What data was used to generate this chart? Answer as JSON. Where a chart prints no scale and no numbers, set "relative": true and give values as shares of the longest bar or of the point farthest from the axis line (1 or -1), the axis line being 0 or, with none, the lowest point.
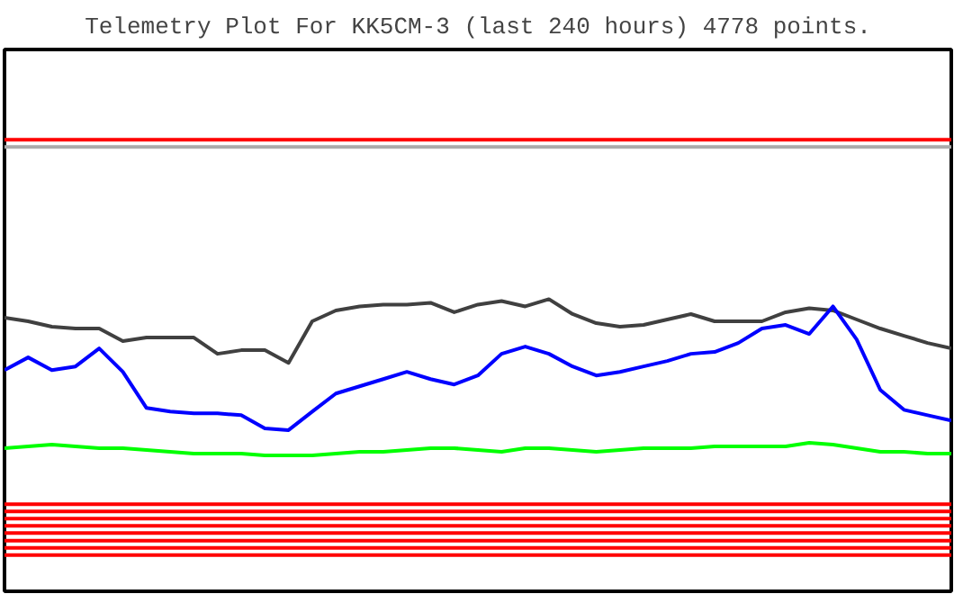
{
  "chart_data": {
    "type": "line",
    "relative": true,
    "title": "Telemetry Plot For KK5CM-3 (last 240 hours) 4778 points.",
    "marker": "none",
    "line_style": "solid",
    "grid": false,
    "tick_labels": false,
    "categories": [
      null,
      null,
      null,
      null,
      null,
      null,
      null,
      null,
      null,
      null,
      null,
      null,
      null,
      null,
      null,
      null,
      null,
      null,
      null,
      null,
      null,
      null,
      null,
      null,
      null,
      null,
      null,
      null,
      null,
      null,
      null,
      null,
      null,
      null,
      null,
      null,
      null,
      null,
      null,
      null,
      null
    ],
    "series": [
      {
        "color": "#ff0000",
        "values": [
          1,
          1,
          1,
          1,
          1,
          1,
          1,
          1,
          1,
          1,
          1,
          1,
          1,
          1,
          1,
          1,
          1,
          1,
          1,
          1,
          1,
          1,
          1,
          1,
          1,
          1,
          1,
          1,
          1,
          1,
          1,
          1,
          1,
          1,
          1,
          1,
          1,
          1,
          1,
          1,
          1
        ]
      },
      {
        "color": "#aaaaaa",
        "values": [
          0.984,
          0.984,
          0.984,
          0.984,
          0.984,
          0.984,
          0.984,
          0.984,
          0.984,
          0.984,
          0.984,
          0.984,
          0.984,
          0.984,
          0.984,
          0.984,
          0.984,
          0.984,
          0.984,
          0.984,
          0.984,
          0.984,
          0.984,
          0.984,
          0.984,
          0.984,
          0.984,
          0.984,
          0.984,
          0.984,
          0.984,
          0.984,
          0.984,
          0.984,
          0.984,
          0.984,
          0.984,
          0.984,
          0.984,
          0.984,
          0.984
        ]
      },
      {
        "color": "#404040",
        "values": [
          0.606,
          0.598,
          0.586,
          0.582,
          0.582,
          0.554,
          0.562,
          0.562,
          0.562,
          0.526,
          0.534,
          0.534,
          0.506,
          0.598,
          0.622,
          0.631,
          0.635,
          0.635,
          0.639,
          0.618,
          0.635,
          0.643,
          0.631,
          0.647,
          0.614,
          0.594,
          0.586,
          0.59,
          0.602,
          0.614,
          0.598,
          0.598,
          0.598,
          0.618,
          0.627,
          0.622,
          0.602,
          0.582,
          0.566,
          0.55,
          0.538
        ]
      },
      {
        "color": "#0000ff",
        "values": [
          0.49,
          0.518,
          0.49,
          0.498,
          0.538,
          0.486,
          0.406,
          0.398,
          0.394,
          0.394,
          0.39,
          0.361,
          0.357,
          0.398,
          0.438,
          0.454,
          0.47,
          0.486,
          0.47,
          0.458,
          0.478,
          0.526,
          0.542,
          0.526,
          0.498,
          0.478,
          0.486,
          0.498,
          0.51,
          0.526,
          0.53,
          0.55,
          0.582,
          0.59,
          0.57,
          0.631,
          0.558,
          0.446,
          0.402,
          0.39,
          0.378
        ]
      },
      {
        "color": "#00ff00",
        "values": [
          0.317,
          0.321,
          0.325,
          0.321,
          0.317,
          0.317,
          0.313,
          0.309,
          0.305,
          0.305,
          0.305,
          0.301,
          0.301,
          0.301,
          0.305,
          0.309,
          0.309,
          0.313,
          0.317,
          0.317,
          0.313,
          0.309,
          0.317,
          0.317,
          0.313,
          0.309,
          0.313,
          0.317,
          0.317,
          0.317,
          0.321,
          0.321,
          0.321,
          0.321,
          0.329,
          0.325,
          0.317,
          0.309,
          0.309,
          0.305,
          0.305
        ]
      },
      {
        "color": "#ff0000",
        "values": [
          0.193,
          0.193,
          0.193,
          0.193,
          0.193,
          0.193,
          0.193,
          0.193,
          0.193,
          0.193,
          0.193,
          0.193,
          0.193,
          0.193,
          0.193,
          0.193,
          0.193,
          0.193,
          0.193,
          0.193,
          0.193,
          0.193,
          0.193,
          0.193,
          0.193,
          0.193,
          0.193,
          0.193,
          0.193,
          0.193,
          0.193,
          0.193,
          0.193,
          0.193,
          0.193,
          0.193,
          0.193,
          0.193,
          0.193,
          0.193,
          0.193
        ]
      },
      {
        "color": "#ff0000",
        "values": [
          0.177,
          0.177,
          0.177,
          0.177,
          0.177,
          0.177,
          0.177,
          0.177,
          0.177,
          0.177,
          0.177,
          0.177,
          0.177,
          0.177,
          0.177,
          0.177,
          0.177,
          0.177,
          0.177,
          0.177,
          0.177,
          0.177,
          0.177,
          0.177,
          0.177,
          0.177,
          0.177,
          0.177,
          0.177,
          0.177,
          0.177,
          0.177,
          0.177,
          0.177,
          0.177,
          0.177,
          0.177,
          0.177,
          0.177,
          0.177,
          0.177
        ]
      },
      {
        "color": "#ff0000",
        "values": [
          0.161,
          0.161,
          0.161,
          0.161,
          0.161,
          0.161,
          0.161,
          0.161,
          0.161,
          0.161,
          0.161,
          0.161,
          0.161,
          0.161,
          0.161,
          0.161,
          0.161,
          0.161,
          0.161,
          0.161,
          0.161,
          0.161,
          0.161,
          0.161,
          0.161,
          0.161,
          0.161,
          0.161,
          0.161,
          0.161,
          0.161,
          0.161,
          0.161,
          0.161,
          0.161,
          0.161,
          0.161,
          0.161,
          0.161,
          0.161,
          0.161
        ]
      },
      {
        "color": "#ff0000",
        "values": [
          0.145,
          0.145,
          0.145,
          0.145,
          0.145,
          0.145,
          0.145,
          0.145,
          0.145,
          0.145,
          0.145,
          0.145,
          0.145,
          0.145,
          0.145,
          0.145,
          0.145,
          0.145,
          0.145,
          0.145,
          0.145,
          0.145,
          0.145,
          0.145,
          0.145,
          0.145,
          0.145,
          0.145,
          0.145,
          0.145,
          0.145,
          0.145,
          0.145,
          0.145,
          0.145,
          0.145,
          0.145,
          0.145,
          0.145,
          0.145,
          0.145
        ]
      },
      {
        "color": "#ff0000",
        "values": [
          0.129,
          0.129,
          0.129,
          0.129,
          0.129,
          0.129,
          0.129,
          0.129,
          0.129,
          0.129,
          0.129,
          0.129,
          0.129,
          0.129,
          0.129,
          0.129,
          0.129,
          0.129,
          0.129,
          0.129,
          0.129,
          0.129,
          0.129,
          0.129,
          0.129,
          0.129,
          0.129,
          0.129,
          0.129,
          0.129,
          0.129,
          0.129,
          0.129,
          0.129,
          0.129,
          0.129,
          0.129,
          0.129,
          0.129,
          0.129,
          0.129
        ]
      },
      {
        "color": "#ff0000",
        "values": [
          0.112,
          0.112,
          0.112,
          0.112,
          0.112,
          0.112,
          0.112,
          0.112,
          0.112,
          0.112,
          0.112,
          0.112,
          0.112,
          0.112,
          0.112,
          0.112,
          0.112,
          0.112,
          0.112,
          0.112,
          0.112,
          0.112,
          0.112,
          0.112,
          0.112,
          0.112,
          0.112,
          0.112,
          0.112,
          0.112,
          0.112,
          0.112,
          0.112,
          0.112,
          0.112,
          0.112,
          0.112,
          0.112,
          0.112,
          0.112,
          0.112
        ]
      },
      {
        "color": "#ff0000",
        "values": [
          0.096,
          0.096,
          0.096,
          0.096,
          0.096,
          0.096,
          0.096,
          0.096,
          0.096,
          0.096,
          0.096,
          0.096,
          0.096,
          0.096,
          0.096,
          0.096,
          0.096,
          0.096,
          0.096,
          0.096,
          0.096,
          0.096,
          0.096,
          0.096,
          0.096,
          0.096,
          0.096,
          0.096,
          0.096,
          0.096,
          0.096,
          0.096,
          0.096,
          0.096,
          0.096,
          0.096,
          0.096,
          0.096,
          0.096,
          0.096,
          0.096
        ]
      },
      {
        "color": "#ff0000",
        "values": [
          0.08,
          0.08,
          0.08,
          0.08,
          0.08,
          0.08,
          0.08,
          0.08,
          0.08,
          0.08,
          0.08,
          0.08,
          0.08,
          0.08,
          0.08,
          0.08,
          0.08,
          0.08,
          0.08,
          0.08,
          0.08,
          0.08,
          0.08,
          0.08,
          0.08,
          0.08,
          0.08,
          0.08,
          0.08,
          0.08,
          0.08,
          0.08,
          0.08,
          0.08,
          0.08,
          0.08,
          0.08,
          0.08,
          0.08,
          0.08,
          0.08
        ]
      }
    ]
  }
}
